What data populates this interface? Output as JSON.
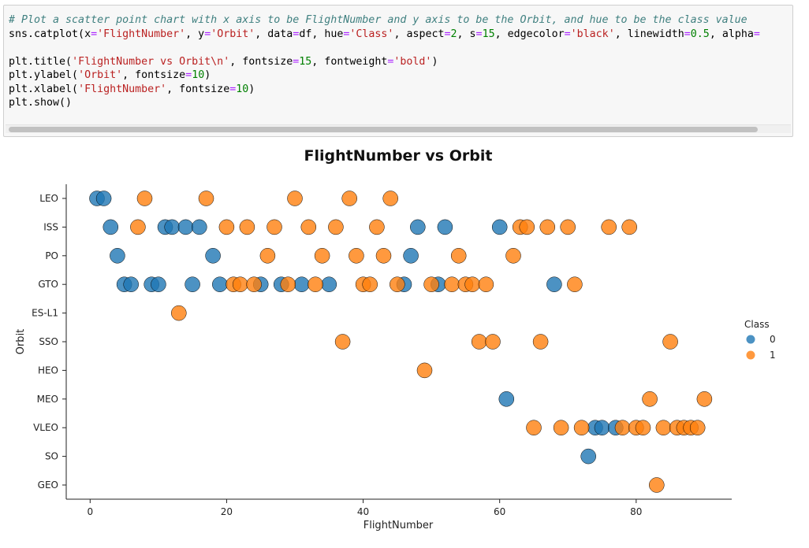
{
  "code_cell": {
    "lines": [
      [
        {
          "c": "cm",
          "t": "# Plot a scatter point chart with x axis to be FlightNumber and y axis to be the Orbit, and hue to be the class value"
        }
      ],
      [
        {
          "t": "sns.catplot(x"
        },
        {
          "c": "op",
          "t": "="
        },
        {
          "c": "st",
          "t": "'FlightNumber'"
        },
        {
          "t": ", y"
        },
        {
          "c": "op",
          "t": "="
        },
        {
          "c": "st",
          "t": "'Orbit'"
        },
        {
          "t": ", data"
        },
        {
          "c": "op",
          "t": "="
        },
        {
          "t": "df, hue"
        },
        {
          "c": "op",
          "t": "="
        },
        {
          "c": "st",
          "t": "'Class'"
        },
        {
          "t": ", aspect"
        },
        {
          "c": "op",
          "t": "="
        },
        {
          "c": "nu",
          "t": "2"
        },
        {
          "t": ", s"
        },
        {
          "c": "op",
          "t": "="
        },
        {
          "c": "nu",
          "t": "15"
        },
        {
          "t": ", edgecolor"
        },
        {
          "c": "op",
          "t": "="
        },
        {
          "c": "st",
          "t": "'black'"
        },
        {
          "t": ", linewidth"
        },
        {
          "c": "op",
          "t": "="
        },
        {
          "c": "nu",
          "t": "0.5"
        },
        {
          "t": ", alpha"
        },
        {
          "c": "op",
          "t": "="
        }
      ],
      [
        {
          "t": ""
        }
      ],
      [
        {
          "t": "plt.title("
        },
        {
          "c": "st",
          "t": "'FlightNumber vs Orbit\\n'"
        },
        {
          "t": ", fontsize"
        },
        {
          "c": "op",
          "t": "="
        },
        {
          "c": "nu",
          "t": "15"
        },
        {
          "t": ", fontweight"
        },
        {
          "c": "op",
          "t": "="
        },
        {
          "c": "st",
          "t": "'bold'"
        },
        {
          "t": ")"
        }
      ],
      [
        {
          "t": "plt.ylabel("
        },
        {
          "c": "st",
          "t": "'Orbit'"
        },
        {
          "t": ", fontsize"
        },
        {
          "c": "op",
          "t": "="
        },
        {
          "c": "nu",
          "t": "10"
        },
        {
          "t": ")"
        }
      ],
      [
        {
          "t": "plt.xlabel("
        },
        {
          "c": "st",
          "t": "'FlightNumber'"
        },
        {
          "t": ", fontsize"
        },
        {
          "c": "op",
          "t": "="
        },
        {
          "c": "nu",
          "t": "10"
        },
        {
          "t": ")"
        }
      ],
      [
        {
          "t": "plt.show()"
        }
      ]
    ]
  },
  "chart_data": {
    "type": "scatter",
    "title": "FlightNumber vs Orbit",
    "xlabel": "FlightNumber",
    "ylabel": "Orbit",
    "xlim": [
      -3.5,
      94
    ],
    "xticks": [
      0,
      20,
      40,
      60,
      80
    ],
    "categories": [
      "LEO",
      "ISS",
      "PO",
      "GTO",
      "ES-L1",
      "SSO",
      "HEO",
      "MEO",
      "VLEO",
      "SO",
      "GEO"
    ],
    "legend": {
      "title": "Class",
      "position": "right",
      "entries": [
        "0",
        "1"
      ]
    },
    "colors": {
      "0": "#1f77b4",
      "1": "#ff7f0e"
    },
    "grid": false,
    "series": [
      {
        "name": "0",
        "points": [
          [
            1,
            "LEO"
          ],
          [
            2,
            "LEO"
          ],
          [
            3,
            "ISS"
          ],
          [
            11,
            "ISS"
          ],
          [
            12,
            "ISS"
          ],
          [
            14,
            "ISS"
          ],
          [
            16,
            "ISS"
          ],
          [
            48,
            "ISS"
          ],
          [
            52,
            "ISS"
          ],
          [
            60,
            "ISS"
          ],
          [
            4,
            "PO"
          ],
          [
            18,
            "PO"
          ],
          [
            47,
            "PO"
          ],
          [
            5,
            "GTO"
          ],
          [
            6,
            "GTO"
          ],
          [
            9,
            "GTO"
          ],
          [
            10,
            "GTO"
          ],
          [
            15,
            "GTO"
          ],
          [
            19,
            "GTO"
          ],
          [
            25,
            "GTO"
          ],
          [
            28,
            "GTO"
          ],
          [
            31,
            "GTO"
          ],
          [
            35,
            "GTO"
          ],
          [
            46,
            "GTO"
          ],
          [
            51,
            "GTO"
          ],
          [
            68,
            "GTO"
          ],
          [
            61,
            "MEO"
          ],
          [
            74,
            "VLEO"
          ],
          [
            75,
            "VLEO"
          ],
          [
            77,
            "VLEO"
          ],
          [
            73,
            "SO"
          ]
        ]
      },
      {
        "name": "1",
        "points": [
          [
            8,
            "LEO"
          ],
          [
            17,
            "LEO"
          ],
          [
            30,
            "LEO"
          ],
          [
            38,
            "LEO"
          ],
          [
            44,
            "LEO"
          ],
          [
            7,
            "ISS"
          ],
          [
            20,
            "ISS"
          ],
          [
            23,
            "ISS"
          ],
          [
            27,
            "ISS"
          ],
          [
            32,
            "ISS"
          ],
          [
            36,
            "ISS"
          ],
          [
            42,
            "ISS"
          ],
          [
            63,
            "ISS"
          ],
          [
            64,
            "ISS"
          ],
          [
            67,
            "ISS"
          ],
          [
            70,
            "ISS"
          ],
          [
            76,
            "ISS"
          ],
          [
            79,
            "ISS"
          ],
          [
            26,
            "PO"
          ],
          [
            34,
            "PO"
          ],
          [
            39,
            "PO"
          ],
          [
            43,
            "PO"
          ],
          [
            54,
            "PO"
          ],
          [
            62,
            "PO"
          ],
          [
            21,
            "GTO"
          ],
          [
            22,
            "GTO"
          ],
          [
            24,
            "GTO"
          ],
          [
            29,
            "GTO"
          ],
          [
            33,
            "GTO"
          ],
          [
            40,
            "GTO"
          ],
          [
            41,
            "GTO"
          ],
          [
            45,
            "GTO"
          ],
          [
            50,
            "GTO"
          ],
          [
            53,
            "GTO"
          ],
          [
            55,
            "GTO"
          ],
          [
            56,
            "GTO"
          ],
          [
            58,
            "GTO"
          ],
          [
            71,
            "GTO"
          ],
          [
            13,
            "ES-L1"
          ],
          [
            37,
            "SSO"
          ],
          [
            57,
            "SSO"
          ],
          [
            59,
            "SSO"
          ],
          [
            66,
            "SSO"
          ],
          [
            85,
            "SSO"
          ],
          [
            49,
            "HEO"
          ],
          [
            82,
            "MEO"
          ],
          [
            90,
            "MEO"
          ],
          [
            65,
            "VLEO"
          ],
          [
            69,
            "VLEO"
          ],
          [
            72,
            "VLEO"
          ],
          [
            78,
            "VLEO"
          ],
          [
            80,
            "VLEO"
          ],
          [
            81,
            "VLEO"
          ],
          [
            84,
            "VLEO"
          ],
          [
            86,
            "VLEO"
          ],
          [
            87,
            "VLEO"
          ],
          [
            88,
            "VLEO"
          ],
          [
            89,
            "VLEO"
          ],
          [
            83,
            "GEO"
          ]
        ]
      }
    ]
  }
}
